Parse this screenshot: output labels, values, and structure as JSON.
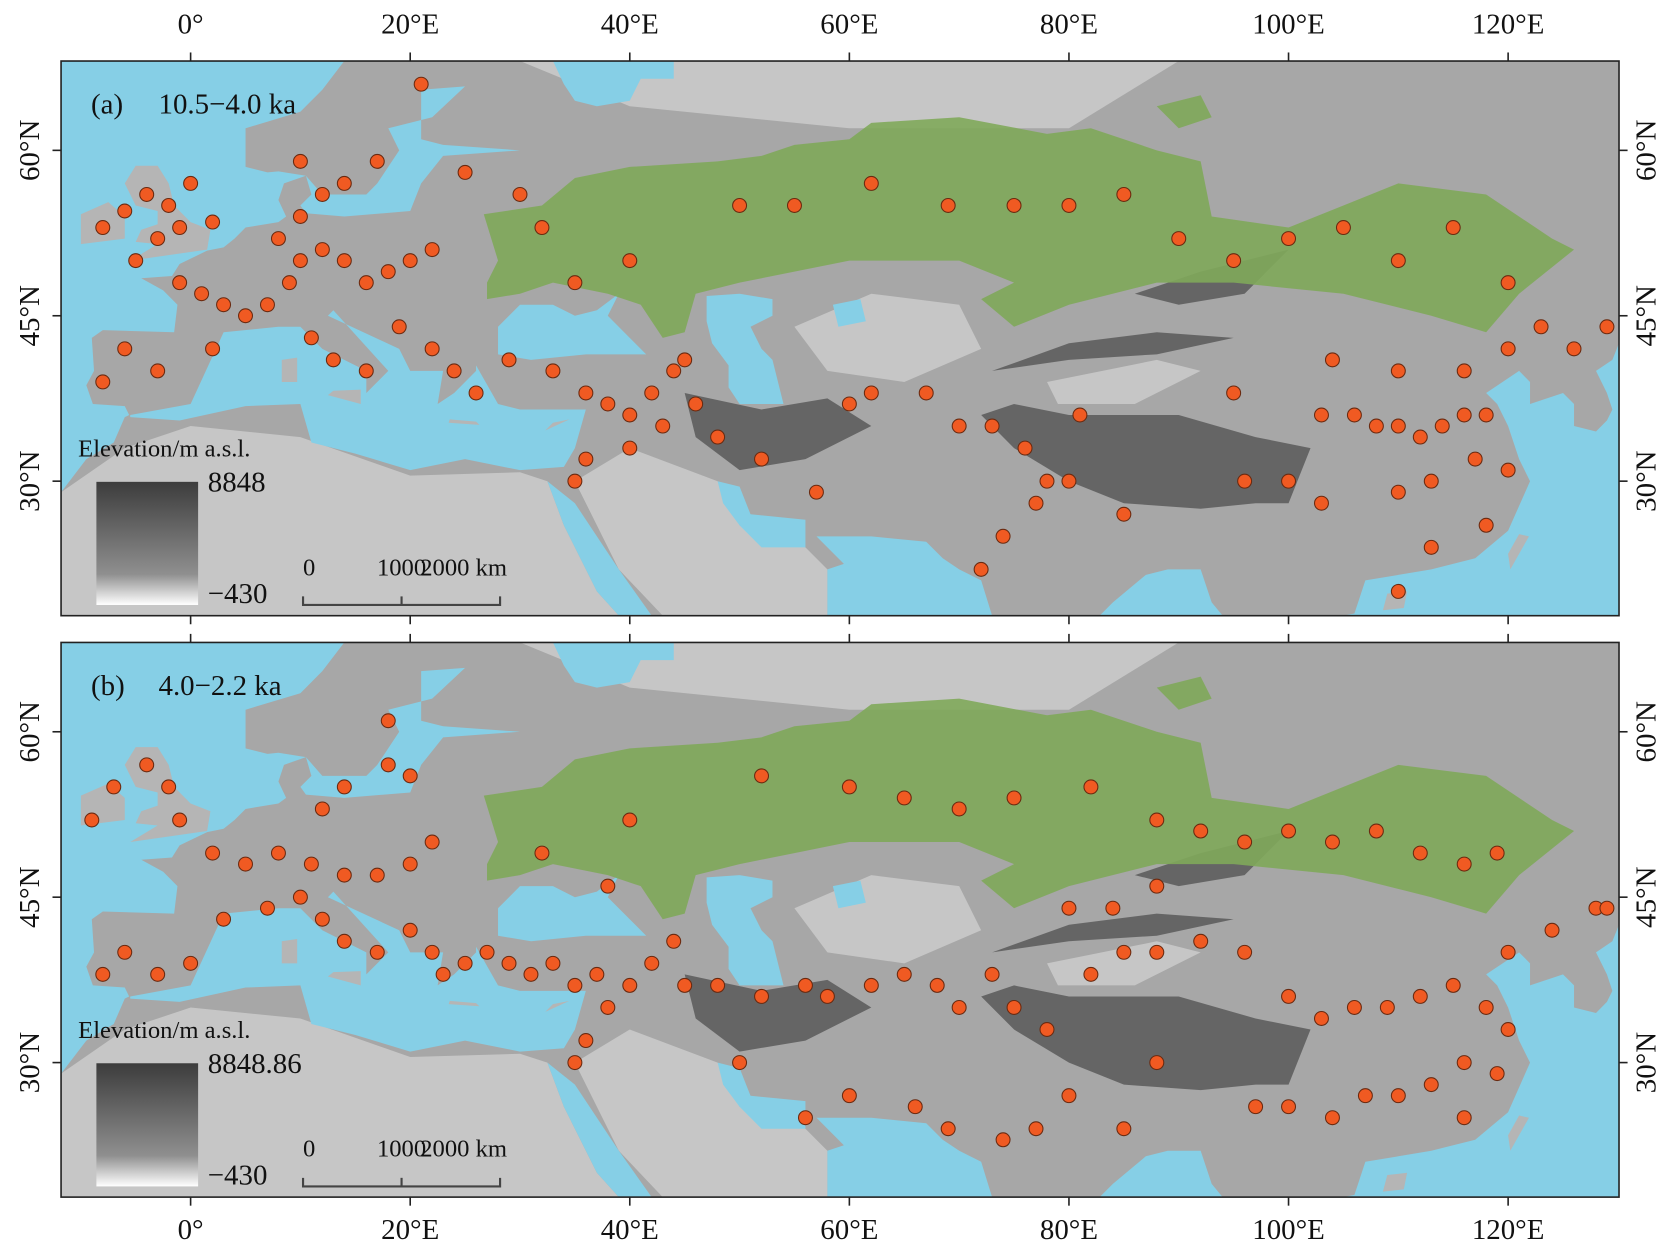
{
  "map": {
    "xlim": [
      -11.8,
      130.1
    ],
    "ylim": [
      17.8,
      68.1
    ],
    "xticks": [
      {
        "value": 0,
        "label": "0°"
      },
      {
        "value": 20,
        "label": "20°E"
      },
      {
        "value": 40,
        "label": "40°E"
      },
      {
        "value": 60,
        "label": "60°E"
      },
      {
        "value": 80,
        "label": "80°E"
      },
      {
        "value": 100,
        "label": "100°E"
      },
      {
        "value": 120,
        "label": "120°E"
      }
    ],
    "yticks": [
      {
        "value": 30,
        "label": "30°N"
      },
      {
        "value": 45,
        "label": "45°N"
      },
      {
        "value": 60,
        "label": "60°N"
      }
    ],
    "site_color": "#f05a22",
    "steppe_color": "#7fa85a"
  },
  "panels": [
    {
      "tag": "(a)",
      "period": "10.5−4.0 ka",
      "legend": {
        "title": "Elevation/m a.s.l.",
        "max": "8848",
        "min": "−430"
      },
      "scale": [
        "0",
        "1000",
        "2000 km"
      ],
      "sites": [
        [
          -8,
          53
        ],
        [
          -6,
          54.5
        ],
        [
          -4,
          56
        ],
        [
          -2,
          55
        ],
        [
          -1,
          53
        ],
        [
          -3,
          52
        ],
        [
          0,
          57
        ],
        [
          2,
          53.5
        ],
        [
          -5,
          50
        ],
        [
          -1,
          48
        ],
        [
          1,
          47
        ],
        [
          3,
          46
        ],
        [
          5,
          45
        ],
        [
          7,
          46
        ],
        [
          9,
          48
        ],
        [
          10,
          50
        ],
        [
          12,
          51
        ],
        [
          14,
          50
        ],
        [
          16,
          48
        ],
        [
          18,
          49
        ],
        [
          20,
          50
        ],
        [
          8,
          52
        ],
        [
          10,
          54
        ],
        [
          12,
          56
        ],
        [
          14,
          57
        ],
        [
          10,
          59
        ],
        [
          17,
          59
        ],
        [
          -8,
          39
        ],
        [
          -6,
          42
        ],
        [
          -3,
          40
        ],
        [
          2,
          42
        ],
        [
          11,
          43
        ],
        [
          13,
          41
        ],
        [
          16,
          40
        ],
        [
          19,
          44
        ],
        [
          22,
          42
        ],
        [
          24,
          40
        ],
        [
          26,
          38
        ],
        [
          29,
          41
        ],
        [
          33,
          40
        ],
        [
          36,
          38
        ],
        [
          38,
          37
        ],
        [
          40,
          36
        ],
        [
          42,
          38
        ],
        [
          44,
          40
        ],
        [
          45,
          41
        ],
        [
          43,
          35
        ],
        [
          40,
          33
        ],
        [
          36,
          32
        ],
        [
          35,
          30
        ],
        [
          46,
          37
        ],
        [
          48,
          34
        ],
        [
          52,
          32
        ],
        [
          57,
          29
        ],
        [
          60,
          37
        ],
        [
          62,
          38
        ],
        [
          67,
          38
        ],
        [
          70,
          35
        ],
        [
          73,
          35
        ],
        [
          76,
          33
        ],
        [
          78,
          30
        ],
        [
          77,
          28
        ],
        [
          80,
          30
        ],
        [
          74,
          25
        ],
        [
          85,
          27
        ],
        [
          72,
          22
        ],
        [
          81,
          36
        ],
        [
          95,
          38
        ],
        [
          103,
          36
        ],
        [
          106,
          36
        ],
        [
          108,
          35
        ],
        [
          110,
          35
        ],
        [
          112,
          34
        ],
        [
          114,
          35
        ],
        [
          116,
          36
        ],
        [
          118,
          36
        ],
        [
          117,
          32
        ],
        [
          113,
          30
        ],
        [
          110,
          29
        ],
        [
          120,
          31
        ],
        [
          118,
          26
        ],
        [
          113,
          24
        ],
        [
          110,
          20
        ],
        [
          103,
          28
        ],
        [
          100,
          30
        ],
        [
          96,
          30
        ],
        [
          104,
          41
        ],
        [
          110,
          40
        ],
        [
          116,
          40
        ],
        [
          120,
          42
        ],
        [
          123,
          44
        ],
        [
          126,
          42
        ],
        [
          129,
          44
        ],
        [
          50,
          55
        ],
        [
          55,
          55
        ],
        [
          62,
          57
        ],
        [
          69,
          55
        ],
        [
          75,
          55
        ],
        [
          80,
          55
        ],
        [
          85,
          56
        ],
        [
          90,
          52
        ],
        [
          95,
          50
        ],
        [
          100,
          52
        ],
        [
          105,
          53
        ],
        [
          110,
          50
        ],
        [
          115,
          53
        ],
        [
          120,
          48
        ],
        [
          40,
          50
        ],
        [
          35,
          48
        ],
        [
          32,
          53
        ],
        [
          30,
          56
        ],
        [
          25,
          58
        ],
        [
          22,
          51
        ],
        [
          21,
          66
        ]
      ]
    },
    {
      "tag": "(b)",
      "period": "4.0−2.2 ka",
      "legend": {
        "title": "Elevation/m a.s.l.",
        "max": "8848.86",
        "min": "−430"
      },
      "scale": [
        "0",
        "1000",
        "2000 km"
      ],
      "sites": [
        [
          -9,
          52
        ],
        [
          -7,
          55
        ],
        [
          -4,
          57
        ],
        [
          -2,
          55
        ],
        [
          -1,
          52
        ],
        [
          2,
          49
        ],
        [
          5,
          48
        ],
        [
          8,
          49
        ],
        [
          11,
          48
        ],
        [
          14,
          47
        ],
        [
          17,
          47
        ],
        [
          20,
          48
        ],
        [
          22,
          50
        ],
        [
          12,
          53
        ],
        [
          14,
          55
        ],
        [
          18,
          57
        ],
        [
          -8,
          38
        ],
        [
          -6,
          40
        ],
        [
          -3,
          38
        ],
        [
          0,
          39
        ],
        [
          3,
          43
        ],
        [
          7,
          44
        ],
        [
          10,
          45
        ],
        [
          12,
          43
        ],
        [
          14,
          41
        ],
        [
          17,
          40
        ],
        [
          20,
          42
        ],
        [
          22,
          40
        ],
        [
          23,
          38
        ],
        [
          25,
          39
        ],
        [
          27,
          40
        ],
        [
          29,
          39
        ],
        [
          31,
          38
        ],
        [
          33,
          39
        ],
        [
          35,
          37
        ],
        [
          37,
          38
        ],
        [
          38,
          35
        ],
        [
          36,
          32
        ],
        [
          35,
          30
        ],
        [
          40,
          37
        ],
        [
          42,
          39
        ],
        [
          44,
          41
        ],
        [
          45,
          37
        ],
        [
          48,
          37
        ],
        [
          52,
          36
        ],
        [
          56,
          37
        ],
        [
          58,
          36
        ],
        [
          62,
          37
        ],
        [
          65,
          38
        ],
        [
          68,
          37
        ],
        [
          70,
          35
        ],
        [
          73,
          38
        ],
        [
          75,
          35
        ],
        [
          78,
          33
        ],
        [
          82,
          38
        ],
        [
          85,
          40
        ],
        [
          88,
          40
        ],
        [
          92,
          41
        ],
        [
          96,
          40
        ],
        [
          100,
          36
        ],
        [
          103,
          34
        ],
        [
          106,
          35
        ],
        [
          109,
          35
        ],
        [
          112,
          36
        ],
        [
          115,
          37
        ],
        [
          118,
          35
        ],
        [
          120,
          33
        ],
        [
          116,
          30
        ],
        [
          113,
          28
        ],
        [
          110,
          27
        ],
        [
          107,
          27
        ],
        [
          104,
          25
        ],
        [
          100,
          26
        ],
        [
          97,
          26
        ],
        [
          116,
          25
        ],
        [
          119,
          29
        ],
        [
          120,
          40
        ],
        [
          124,
          42
        ],
        [
          128,
          44
        ],
        [
          129,
          44
        ],
        [
          80,
          27
        ],
        [
          77,
          24
        ],
        [
          74,
          23
        ],
        [
          69,
          24
        ],
        [
          66,
          26
        ],
        [
          60,
          27
        ],
        [
          56,
          25
        ],
        [
          50,
          30
        ],
        [
          85,
          24
        ],
        [
          88,
          30
        ],
        [
          60,
          55
        ],
        [
          65,
          54
        ],
        [
          70,
          53
        ],
        [
          75,
          54
        ],
        [
          82,
          55
        ],
        [
          88,
          52
        ],
        [
          92,
          51
        ],
        [
          96,
          50
        ],
        [
          100,
          51
        ],
        [
          104,
          50
        ],
        [
          108,
          51
        ],
        [
          112,
          49
        ],
        [
          116,
          48
        ],
        [
          119,
          49
        ],
        [
          88,
          46
        ],
        [
          84,
          44
        ],
        [
          80,
          44
        ],
        [
          40,
          52
        ],
        [
          38,
          46
        ],
        [
          32,
          49
        ],
        [
          52,
          56
        ],
        [
          18,
          61
        ],
        [
          20,
          56
        ]
      ]
    }
  ]
}
